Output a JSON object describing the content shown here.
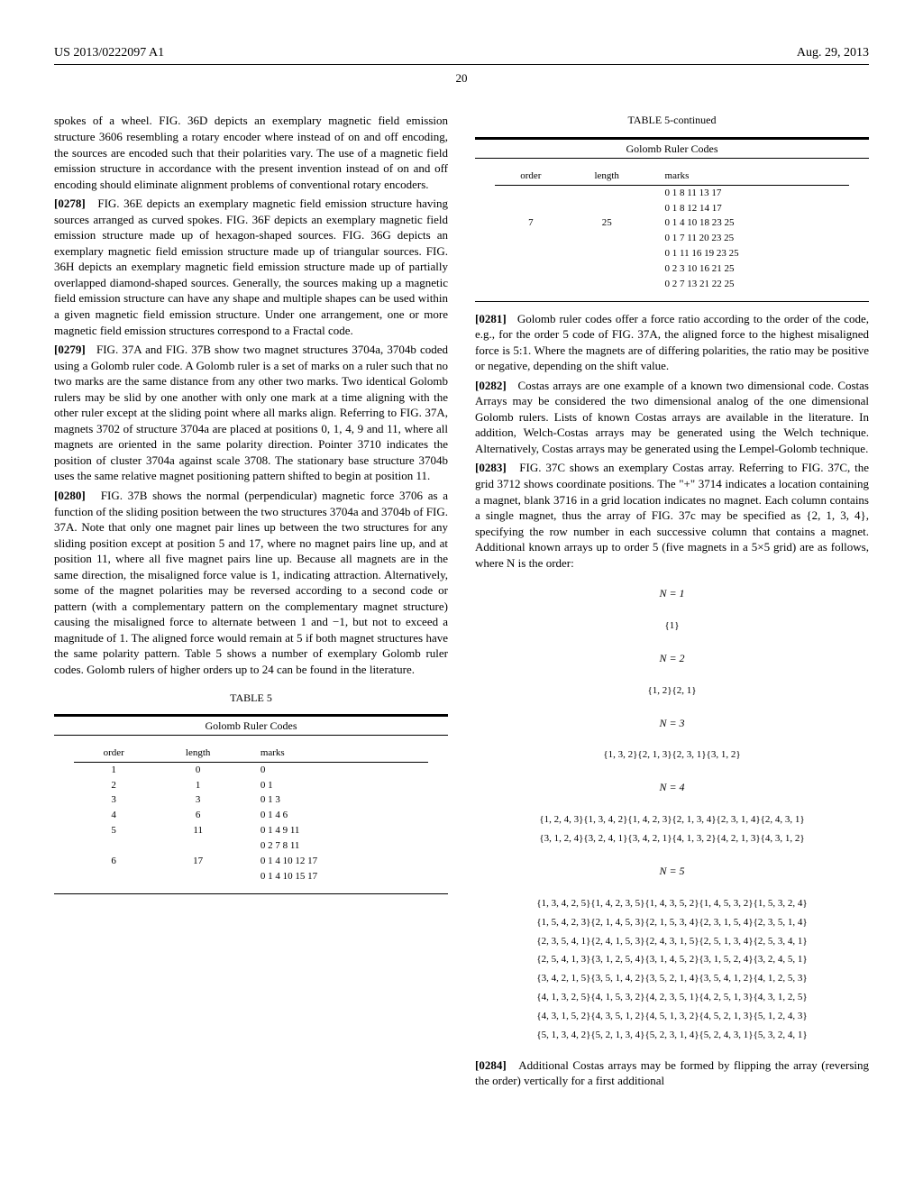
{
  "header": {
    "left": "US 2013/0222097 A1",
    "right": "Aug. 29, 2013"
  },
  "page_number": "20",
  "left_column": {
    "p1": "spokes of a wheel. FIG. 36D depicts an exemplary magnetic field emission structure 3606 resembling a rotary encoder where instead of on and off encoding, the sources are encoded such that their polarities vary. The use of a magnetic field emission structure in accordance with the present invention instead of on and off encoding should eliminate alignment problems of conventional rotary encoders.",
    "p2_num": "[0278]",
    "p2": "FIG. 36E depicts an exemplary magnetic field emission structure having sources arranged as curved spokes. FIG. 36F depicts an exemplary magnetic field emission structure made up of hexagon-shaped sources. FIG. 36G depicts an exemplary magnetic field emission structure made up of triangular sources. FIG. 36H depicts an exemplary magnetic field emission structure made up of partially overlapped diamond-shaped sources. Generally, the sources making up a magnetic field emission structure can have any shape and multiple shapes can be used within a given magnetic field emission structure. Under one arrangement, one or more magnetic field emission structures correspond to a Fractal code.",
    "p3_num": "[0279]",
    "p3": "FIG. 37A and FIG. 37B show two magnet structures 3704a, 3704b coded using a Golomb ruler code. A Golomb ruler is a set of marks on a ruler such that no two marks are the same distance from any other two marks. Two identical Golomb rulers may be slid by one another with only one mark at a time aligning with the other ruler except at the sliding point where all marks align. Referring to FIG. 37A, magnets 3702 of structure 3704a are placed at positions 0, 1, 4, 9 and 11, where all magnets are oriented in the same polarity direction. Pointer 3710 indicates the position of cluster 3704a against scale 3708. The stationary base structure 3704b uses the same relative magnet positioning pattern shifted to begin at position 11.",
    "p4_num": "[0280]",
    "p4": "FIG. 37B shows the normal (perpendicular) magnetic force 3706 as a function of the sliding position between the two structures 3704a and 3704b of FIG. 37A. Note that only one magnet pair lines up between the two structures for any sliding position except at position 5 and 17, where no magnet pairs line up, and at position 11, where all five magnet pairs line up. Because all magnets are in the same direction, the misaligned force value is 1, indicating attraction. Alternatively, some of the magnet polarities may be reversed according to a second code or pattern (with a complementary pattern on the complementary magnet structure) causing the misaligned force to alternate between 1 and −1, but not to exceed a magnitude of 1. The aligned force would remain at 5 if both magnet structures have the same polarity pattern. Table 5 shows a number of exemplary Golomb ruler codes. Golomb rulers of higher orders up to 24 can be found in the literature.",
    "table5_caption": "TABLE 5",
    "table5_title": "Golomb Ruler Codes",
    "table5_headers": [
      "order",
      "length",
      "marks"
    ],
    "table5_rows": [
      [
        "1",
        "0",
        "0"
      ],
      [
        "2",
        "1",
        "0 1"
      ],
      [
        "3",
        "3",
        "0 1 3"
      ],
      [
        "4",
        "6",
        "0 1 4 6"
      ],
      [
        "5",
        "11",
        "0 1 4 9 11"
      ],
      [
        "",
        "",
        "0 2 7 8 11"
      ],
      [
        "6",
        "17",
        "0 1 4 10 12 17"
      ],
      [
        "",
        "",
        "0 1 4 10 15 17"
      ]
    ]
  },
  "right_column": {
    "table5c_caption": "TABLE 5-continued",
    "table5c_title": "Golomb Ruler Codes",
    "table5c_headers": [
      "order",
      "length",
      "marks"
    ],
    "table5c_rows": [
      [
        "",
        "",
        "0 1 8 11 13 17"
      ],
      [
        "",
        "",
        "0 1 8 12 14 17"
      ],
      [
        "7",
        "25",
        "0 1 4 10 18 23 25"
      ],
      [
        "",
        "",
        "0 1 7 11 20 23 25"
      ],
      [
        "",
        "",
        "0 1 11 16 19 23 25"
      ],
      [
        "",
        "",
        "0 2 3 10 16 21 25"
      ],
      [
        "",
        "",
        "0 2 7 13 21 22 25"
      ]
    ],
    "p1_num": "[0281]",
    "p1": "Golomb ruler codes offer a force ratio according to the order of the code, e.g., for the order 5 code of FIG. 37A, the aligned force to the highest misaligned force is 5:1. Where the magnets are of differing polarities, the ratio may be positive or negative, depending on the shift value.",
    "p2_num": "[0282]",
    "p2": "Costas arrays are one example of a known two dimensional code. Costas Arrays may be considered the two dimensional analog of the one dimensional Golomb rulers. Lists of known Costas arrays are available in the literature. In addition, Welch-Costas arrays may be generated using the Welch technique. Alternatively, Costas arrays may be generated using the Lempel-Golomb technique.",
    "p3_num": "[0283]",
    "p3": "FIG. 37C shows an exemplary Costas array. Referring to FIG. 37C, the grid 3712 shows coordinate positions. The \"+\" 3714 indicates a location containing a magnet, blank 3716 in a grid location indicates no magnet. Each column contains a single magnet, thus the array of FIG. 37c may be specified as {2, 1, 3, 4}, specifying the row number in each successive column that contains a magnet. Additional known arrays up to order 5 (five magnets in a 5×5 grid) are as follows, where N is the order:",
    "math": {
      "n1": "N = 1",
      "n1v": "{1}",
      "n2": "N = 2",
      "n2v": "{1, 2}{2, 1}",
      "n3": "N = 3",
      "n3v": "{1, 3, 2}{2, 1, 3}{2, 3, 1}{3, 1, 2}",
      "n4": "N = 4",
      "n4r1": "{1, 2, 4, 3}{1, 3, 4, 2}{1, 4, 2, 3}{2, 1, 3, 4}{2, 3, 1, 4}{2, 4, 3, 1}",
      "n4r2": "{3, 1, 2, 4}{3, 2, 4, 1}{3, 4, 2, 1}{4, 1, 3, 2}{4, 2, 1, 3}{4, 3, 1, 2}",
      "n5": "N = 5",
      "n5r1": "{1, 3, 4, 2, 5}{1, 4, 2, 3, 5}{1, 4, 3, 5, 2}{1, 4, 5, 3, 2}{1, 5, 3, 2, 4}",
      "n5r2": "{1, 5, 4, 2, 3}{2, 1, 4, 5, 3}{2, 1, 5, 3, 4}{2, 3, 1, 5, 4}{2, 3, 5, 1, 4}",
      "n5r3": "{2, 3, 5, 4, 1}{2, 4, 1, 5, 3}{2, 4, 3, 1, 5}{2, 5, 1, 3, 4}{2, 5, 3, 4, 1}",
      "n5r4": "{2, 5, 4, 1, 3}{3, 1, 2, 5, 4}{3, 1, 4, 5, 2}{3, 1, 5, 2, 4}{3, 2, 4, 5, 1}",
      "n5r5": "{3, 4, 2, 1, 5}{3, 5, 1, 4, 2}{3, 5, 2, 1, 4}{3, 5, 4, 1, 2}{4, 1, 2, 5, 3}",
      "n5r6": "{4, 1, 3, 2, 5}{4, 1, 5, 3, 2}{4, 2, 3, 5, 1}{4, 2, 5, 1, 3}{4, 3, 1, 2, 5}",
      "n5r7": "{4, 3, 1, 5, 2}{4, 3, 5, 1, 2}{4, 5, 1, 3, 2}{4, 5, 2, 1, 3}{5, 1, 2, 4, 3}",
      "n5r8": "{5, 1, 3, 4, 2}{5, 2, 1, 3, 4}{5, 2, 3, 1, 4}{5, 2, 4, 3, 1}{5, 3, 2, 4, 1}"
    },
    "p4_num": "[0284]",
    "p4": "Additional Costas arrays may be formed by flipping the array (reversing the order) vertically for a first additional"
  }
}
